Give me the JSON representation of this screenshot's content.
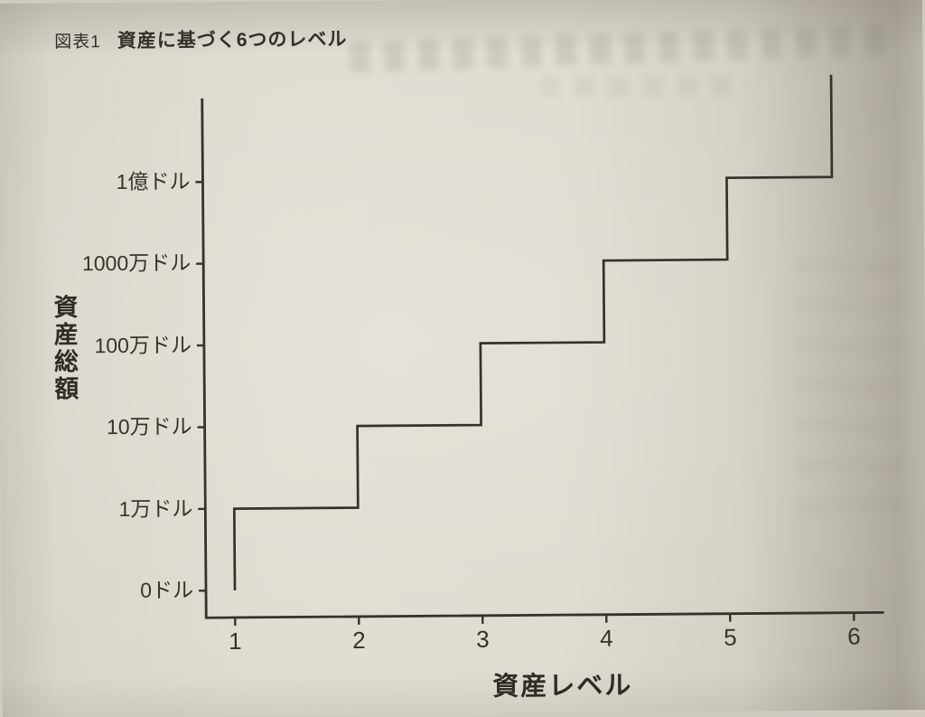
{
  "page": {
    "figure_label": "図表1",
    "figure_title": "資産に基づく6つのレベル"
  },
  "chart_data": {
    "type": "step",
    "title": "資産に基づく6つのレベル",
    "xlabel": "資産レベル",
    "ylabel": "資産総額",
    "x_ticks": [
      "1",
      "2",
      "3",
      "4",
      "5",
      "6"
    ],
    "y_tick_labels": [
      "0ドル",
      "1万ドル",
      "10万ドル",
      "100万ドル",
      "1000万ドル",
      "1億ドル"
    ],
    "y_scale_note": "ordinal levels, each tick is x10 in dollars",
    "xlim": [
      0.75,
      6.3
    ],
    "grid": false,
    "legend": false,
    "series": [
      {
        "name": "資産総額",
        "points_x": [
          1,
          1,
          2,
          2,
          3,
          3,
          4,
          4,
          5,
          5,
          5.85,
          5.85
        ],
        "points_y_level": [
          0,
          1,
          1,
          2,
          2,
          3,
          3,
          4,
          4,
          5,
          5,
          6.25
        ]
      }
    ],
    "levels": [
      {
        "level": "1",
        "assets": "1万ドル"
      },
      {
        "level": "2",
        "assets": "10万ドル"
      },
      {
        "level": "3",
        "assets": "100万ドル"
      },
      {
        "level": "4",
        "assets": "1000万ドル"
      },
      {
        "level": "5",
        "assets": "1億ドル"
      }
    ],
    "line_color": "#35322c",
    "axis_color": "#35322c",
    "paper_color": "#dcd8cd",
    "text_color": "#33302a"
  }
}
